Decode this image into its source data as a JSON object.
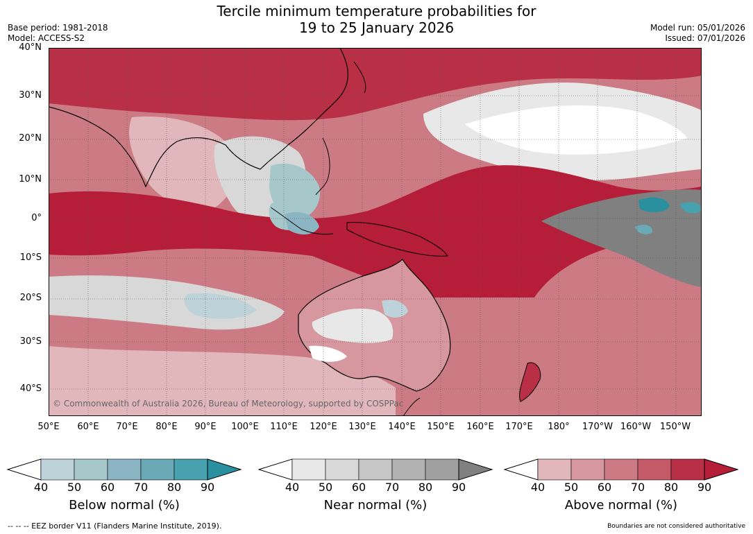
{
  "title_line1": "Tercile minimum temperature probabilities for",
  "title_line2": "19 to 25 January 2026",
  "base_period": "Base period: 1981-2018",
  "model": "Model: ACCESS-S2",
  "model_run": "Model run: 05/01/2026",
  "issued": "Issued: 07/01/2026",
  "lat_labels": [
    "40°N",
    "30°N",
    "20°N",
    "10°N",
    "0°",
    "10°S",
    "20°S",
    "30°S",
    "40°S"
  ],
  "lon_labels": [
    "50°E",
    "60°E",
    "70°E",
    "80°E",
    "90°E",
    "100°E",
    "110°E",
    "120°E",
    "130°E",
    "140°E",
    "150°E",
    "160°E",
    "170°E",
    "180°",
    "170°W",
    "160°W",
    "150°W"
  ],
  "copyright": "© Commonwealth of Australia 2026, Bureau of Meteorology, supported by COSPPac",
  "colorbars": [
    {
      "title": "Below normal (%)",
      "ticks": [
        "40",
        "50",
        "60",
        "70",
        "80",
        "90"
      ],
      "colors": [
        "#bed3d9",
        "#a6c8cb",
        "#8cb5c3",
        "#6aaab6",
        "#48a1ae",
        "#2a8f9f"
      ]
    },
    {
      "title": "Near normal (%)",
      "ticks": [
        "40",
        "50",
        "60",
        "70",
        "80",
        "90"
      ],
      "colors": [
        "#e8e8e8",
        "#d8d8d8",
        "#c6c6c6",
        "#b2b2b2",
        "#a0a0a0",
        "#808080"
      ]
    },
    {
      "title": "Above normal (%)",
      "ticks": [
        "40",
        "50",
        "60",
        "70",
        "80",
        "90"
      ],
      "colors": [
        "#e2b7bc",
        "#d6979f",
        "#cc7a83",
        "#c45a67",
        "#b93046",
        "#b51d38"
      ]
    }
  ],
  "footnote_left": "--  --  -- EEZ border V11 (Flanders Marine Institute, 2019).",
  "footnote_right": "Boundaries are not considered authoritative"
}
